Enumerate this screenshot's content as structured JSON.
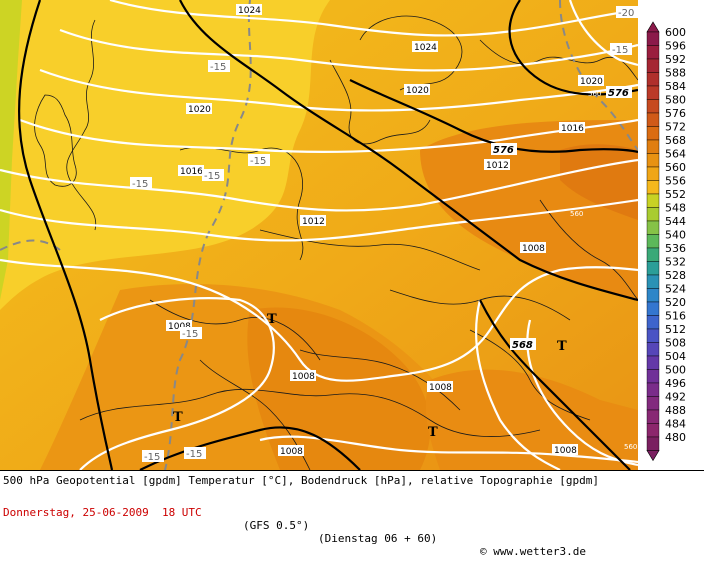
{
  "legend": {
    "colors": {
      "600": "#8b1a4a",
      "596": "#9a1e3e",
      "592": "#a52633",
      "588": "#b0302c",
      "584": "#bb3a28",
      "580": "#c64a20",
      "576": "#d05a18",
      "572": "#da6c12",
      "568": "#e07e10",
      "564": "#e89212",
      "560": "#f0a616",
      "556": "#f5b81c",
      "552": "#c8d224",
      "548": "#a9cc30",
      "544": "#86c247",
      "540": "#5cb85a",
      "536": "#3aa978",
      "532": "#2b9e98",
      "528": "#2a92b5",
      "524": "#2d86c8",
      "520": "#3476cf",
      "516": "#3e64cc",
      "512": "#4a54c4",
      "508": "#5646b8",
      "504": "#6438a8",
      "500": "#703098",
      "496": "#7a2c8a",
      "492": "#822a7e",
      "488": "#882874",
      "484": "#8c266c",
      "480": "#7a2060"
    },
    "levels": [
      600,
      596,
      592,
      588,
      584,
      580,
      576,
      572,
      568,
      564,
      560,
      556,
      552,
      548,
      544,
      540,
      536,
      532,
      528,
      524,
      520,
      516,
      512,
      508,
      504,
      500,
      496,
      492,
      488,
      484,
      480
    ]
  },
  "pressure_labels": [
    "1024",
    "1024",
    "1020",
    "1020",
    "1020",
    "1016",
    "1016",
    "1012",
    "1012",
    "1008",
    "1008",
    "1008",
    "1008",
    "1008",
    "1008"
  ],
  "geopotential_labels": [
    "576",
    "576",
    "568",
    "560",
    "560",
    "560"
  ],
  "temperature_labels": [
    "-20",
    "-15",
    "-15",
    "-15",
    "-15",
    "-15",
    "-15",
    "-15",
    "-15"
  ],
  "low_marks": [
    "T",
    "T",
    "T",
    "T"
  ],
  "footer": {
    "line1": "500 hPa Geopotential [gpdm] Temperatur [°C], Bodendruck [hPa], relative Topographie [gpdm]",
    "date": "Donnerstag, 25-06-2009  18 UTC",
    "model": "(GFS 0.5°)",
    "run": "(Dienstag 06 + 60)",
    "copyright": "© www.wetter3.de"
  }
}
